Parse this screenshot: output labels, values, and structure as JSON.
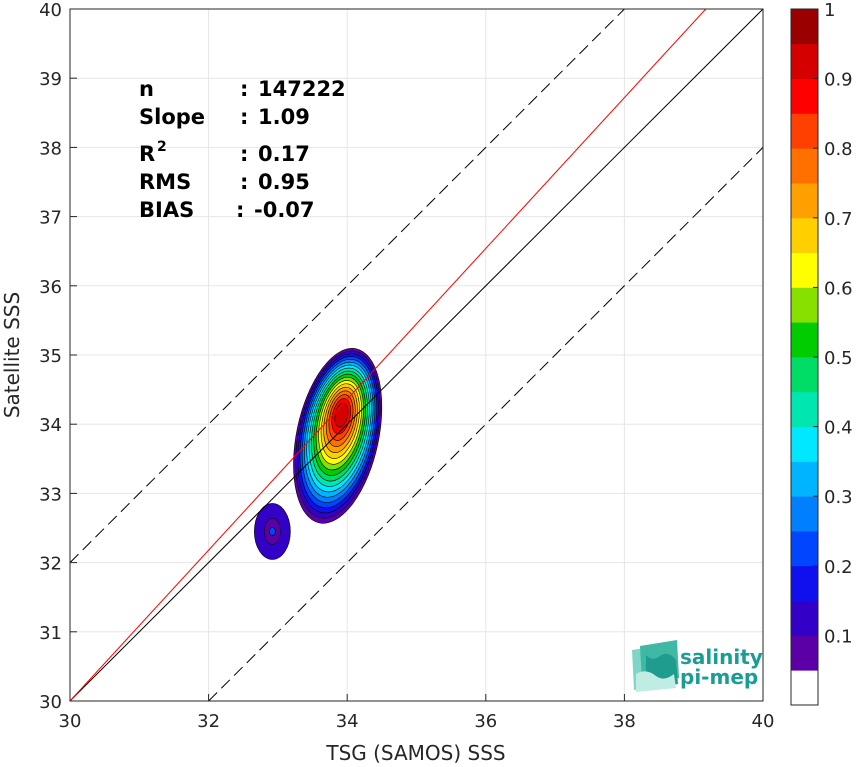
{
  "chart_data": {
    "type": "scatter-density-contour",
    "xlabel": "TSG (SAMOS) SSS",
    "ylabel": "Satellite SSS",
    "xlim": [
      30,
      40
    ],
    "ylim": [
      30,
      40
    ],
    "x_ticks": [
      "30",
      "32",
      "34",
      "36",
      "38",
      "40"
    ],
    "y_ticks": [
      "30",
      "31",
      "32",
      "33",
      "34",
      "35",
      "36",
      "37",
      "38",
      "39",
      "40"
    ],
    "grid": true,
    "stats": [
      {
        "key": "n",
        "sep": ":",
        "value": "147222"
      },
      {
        "key": "Slope",
        "sep": ":",
        "value": "1.09"
      },
      {
        "key": "R",
        "sup": "2",
        "sep": ":",
        "value": "0.17"
      },
      {
        "key": "RMS",
        "sep": ":",
        "value": "0.95"
      },
      {
        "key": "BIAS",
        "sep": ":",
        "value": "-0.07"
      }
    ],
    "lines": [
      {
        "name": "1:1",
        "color": "#000000",
        "style": "solid",
        "points": [
          [
            30,
            30
          ],
          [
            40,
            40
          ]
        ]
      },
      {
        "name": "regression",
        "color": "#ff0000",
        "style": "solid",
        "points": [
          [
            30,
            30
          ],
          [
            40,
            40.9
          ]
        ]
      },
      {
        "name": "upper-bound",
        "color": "#000000",
        "style": "dashed",
        "points": [
          [
            30,
            32
          ],
          [
            38,
            40
          ]
        ]
      },
      {
        "name": "lower-bound",
        "color": "#000000",
        "style": "dashed",
        "points": [
          [
            32,
            30
          ],
          [
            40,
            38
          ]
        ]
      }
    ],
    "density_peaks": [
      {
        "x": 33.92,
        "y": 34.15,
        "level": 1.0
      },
      {
        "x": 32.92,
        "y": 32.45,
        "level": 0.1
      }
    ],
    "colorbar": {
      "ticks": [
        "0.1",
        "0.2",
        "0.3",
        "0.4",
        "0.5",
        "0.6",
        "0.7",
        "0.8",
        "0.9",
        "1"
      ],
      "colors": [
        "#ffffff",
        "#5a00a6",
        "#3300c8",
        "#1010ee",
        "#0046ff",
        "#0080ff",
        "#00b4ff",
        "#00e8ff",
        "#00e6b0",
        "#00dd66",
        "#00cc00",
        "#88e000",
        "#ffff00",
        "#ffd000",
        "#ffa000",
        "#ff7000",
        "#ff4000",
        "#ff0000",
        "#d40000",
        "#9a0000"
      ]
    },
    "logo": [
      "salinity",
      "pi-mep"
    ]
  }
}
